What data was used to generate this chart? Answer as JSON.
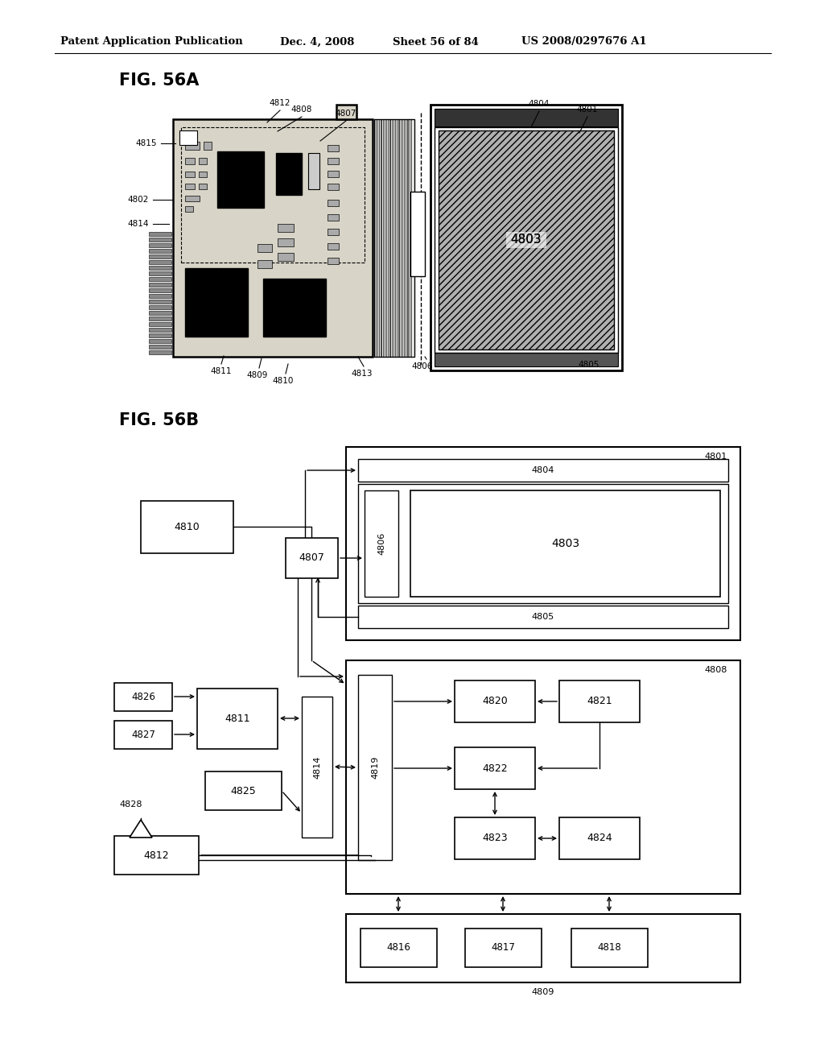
{
  "bg_color": "#ffffff",
  "header_text": "Patent Application Publication",
  "header_date": "Dec. 4, 2008",
  "header_sheet": "Sheet 56 of 84",
  "header_patent": "US 2008/0297676 A1",
  "fig_a_label": "FIG. 56A",
  "fig_b_label": "FIG. 56B"
}
